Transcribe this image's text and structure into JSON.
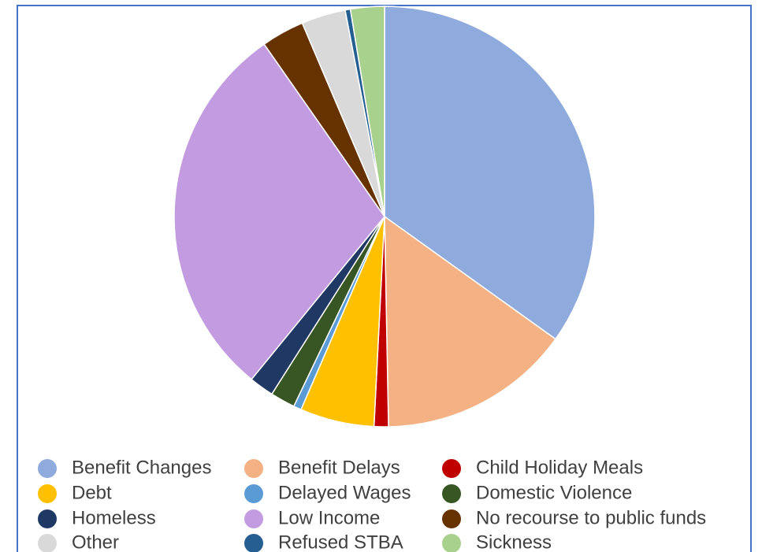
{
  "chart_data": {
    "type": "pie",
    "categories": [
      "Benefit Changes",
      "Benefit Delays",
      "Child Holiday Meals",
      "Debt",
      "Delayed Wages",
      "Domestic Violence",
      "Homeless",
      "Low Income",
      "No recourse to public funds",
      "Other",
      "Refused STBA",
      "Sickness"
    ],
    "values": [
      34.9,
      14.8,
      1.1,
      5.7,
      0.6,
      1.9,
      1.9,
      29.4,
      3.3,
      3.4,
      0.4,
      2.6
    ],
    "colors": [
      "#8faadc",
      "#f4b183",
      "#c00000",
      "#ffc000",
      "#5b9bd5",
      "#375623",
      "#203864",
      "#c39be0",
      "#663300",
      "#d9d9d9",
      "#255e91",
      "#a9d18e"
    ],
    "legend": "bottom"
  }
}
